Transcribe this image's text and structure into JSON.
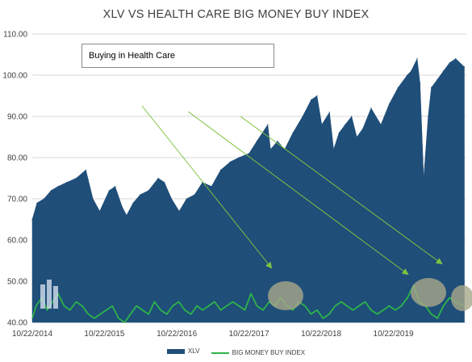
{
  "chart_data": {
    "type": "area",
    "title": "XLV VS HEALTH CARE BIG MONEY BUY INDEX",
    "xlabel": "",
    "ylabel": "",
    "ylim": [
      40,
      110
    ],
    "yticks": [
      "40.00",
      "50.00",
      "60.00",
      "70.00",
      "80.00",
      "90.00",
      "100.00",
      "110.00"
    ],
    "xticks": [
      "10/22/2014",
      "10/22/2015",
      "10/22/2016",
      "10/22/2017",
      "10/22/2018",
      "10/22/2019"
    ],
    "grid": true,
    "legend_position": "bottom",
    "series": [
      {
        "name": "XLV",
        "style": "area",
        "color": "#1f4e79",
        "x": [
          "2014-10-22",
          "2014-11-15",
          "2014-12-20",
          "2015-01-25",
          "2015-03-01",
          "2015-04-15",
          "2015-06-01",
          "2015-07-20",
          "2015-08-25",
          "2015-09-28",
          "2015-11-15",
          "2015-12-15",
          "2016-01-20",
          "2016-02-11",
          "2016-03-15",
          "2016-04-20",
          "2016-06-01",
          "2016-07-20",
          "2016-08-20",
          "2016-09-25",
          "2016-11-03",
          "2016-12-10",
          "2017-01-20",
          "2017-03-01",
          "2017-04-15",
          "2017-06-01",
          "2017-07-20",
          "2017-09-01",
          "2017-10-22",
          "2017-12-01",
          "2018-01-25",
          "2018-02-08",
          "2018-03-15",
          "2018-04-20",
          "2018-06-01",
          "2018-07-20",
          "2018-09-01",
          "2018-10-01",
          "2018-10-25",
          "2018-12-03",
          "2018-12-24",
          "2019-01-20",
          "2019-02-20",
          "2019-03-25",
          "2019-04-20",
          "2019-05-20",
          "2019-07-01",
          "2019-08-20",
          "2019-10-01",
          "2019-11-15",
          "2019-12-31",
          "2020-01-20",
          "2020-02-19",
          "2020-03-05",
          "2020-03-23",
          "2020-04-15",
          "2020-05-01",
          "2020-06-01",
          "2020-07-01",
          "2020-08-01",
          "2020-09-01",
          "2020-10-15"
        ],
        "values": [
          65,
          69,
          70,
          72,
          73,
          74,
          75,
          77,
          70,
          67,
          72,
          73,
          68,
          66,
          69,
          71,
          72,
          75,
          74,
          70,
          67,
          70,
          71,
          74,
          73,
          77,
          79,
          80,
          81,
          84,
          88,
          82,
          84,
          82,
          86,
          90,
          94,
          95,
          88,
          91,
          82,
          86,
          88,
          90,
          85,
          87,
          92,
          88,
          93,
          97,
          100,
          101,
          104,
          98,
          75,
          90,
          97,
          99,
          101,
          103,
          104,
          102
        ]
      },
      {
        "name": "BIG MONEY BUY INDEX",
        "style": "line",
        "color": "#2db34a",
        "x": [
          "2014-10-22",
          "2014-11-10",
          "2014-12-10",
          "2015-01-05",
          "2015-02-01",
          "2015-03-01",
          "2015-04-01",
          "2015-05-01",
          "2015-06-01",
          "2015-07-01",
          "2015-08-01",
          "2015-09-01",
          "2015-10-01",
          "2015-11-01",
          "2015-12-01",
          "2016-01-01",
          "2016-02-01",
          "2016-03-01",
          "2016-04-01",
          "2016-05-01",
          "2016-06-01",
          "2016-07-01",
          "2016-08-01",
          "2016-09-01",
          "2016-10-01",
          "2016-11-01",
          "2016-12-01",
          "2017-01-01",
          "2017-02-01",
          "2017-03-01",
          "2017-04-01",
          "2017-05-01",
          "2017-06-01",
          "2017-07-01",
          "2017-08-01",
          "2017-09-01",
          "2017-10-01",
          "2017-11-01",
          "2017-12-01",
          "2018-01-01",
          "2018-02-01",
          "2018-03-01",
          "2018-04-01",
          "2018-05-01",
          "2018-06-01",
          "2018-07-01",
          "2018-08-01",
          "2018-09-01",
          "2018-10-01",
          "2018-11-01",
          "2018-12-01",
          "2019-01-01",
          "2019-02-01",
          "2019-03-01",
          "2019-04-01",
          "2019-05-01",
          "2019-06-01",
          "2019-07-01",
          "2019-08-01",
          "2019-09-01",
          "2019-10-01",
          "2019-11-01",
          "2019-12-01",
          "2020-01-01",
          "2020-02-01",
          "2020-03-01",
          "2020-04-01",
          "2020-05-01",
          "2020-06-01",
          "2020-07-01",
          "2020-08-01",
          "2020-09-01",
          "2020-10-15"
        ],
        "values": [
          41,
          44,
          46,
          43,
          45,
          47,
          44,
          43,
          45,
          44,
          42,
          41,
          42,
          43,
          44,
          41,
          40,
          42,
          44,
          43,
          42,
          45,
          43,
          42,
          44,
          45,
          43,
          42,
          44,
          43,
          44,
          45,
          43,
          44,
          45,
          44,
          43,
          47,
          44,
          43,
          45,
          44,
          46,
          44,
          43,
          45,
          44,
          42,
          43,
          41,
          42,
          44,
          45,
          44,
          43,
          44,
          45,
          43,
          42,
          43,
          44,
          43,
          44,
          46,
          49,
          45,
          44,
          42,
          41,
          44,
          46,
          45,
          44
        ]
      }
    ],
    "annotations": [
      "Buying in Health Care"
    ]
  }
}
